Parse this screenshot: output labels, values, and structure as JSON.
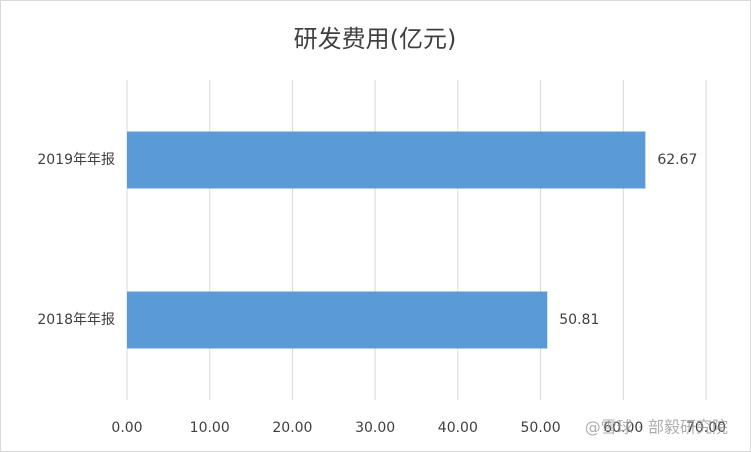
{
  "chart_data": {
    "type": "bar",
    "orientation": "horizontal",
    "title": "研发费用(亿元)",
    "categories": [
      "2019年年报",
      "2018年年报"
    ],
    "values": [
      62.67,
      50.81
    ],
    "color": "#5b9bd5",
    "xlim": [
      0,
      70
    ],
    "xticks": [
      {
        "value": 0,
        "label": "0.00"
      },
      {
        "value": 10,
        "label": "10.00"
      },
      {
        "value": 20,
        "label": "20.00"
      },
      {
        "value": 30,
        "label": "30.00"
      },
      {
        "value": 40,
        "label": "40.00"
      },
      {
        "value": 50,
        "label": "50.00"
      },
      {
        "value": 60,
        "label": "60.00"
      },
      {
        "value": 70,
        "label": "70.00"
      }
    ],
    "grid": true,
    "watermark": "@雪球 · 部毅研究院"
  }
}
